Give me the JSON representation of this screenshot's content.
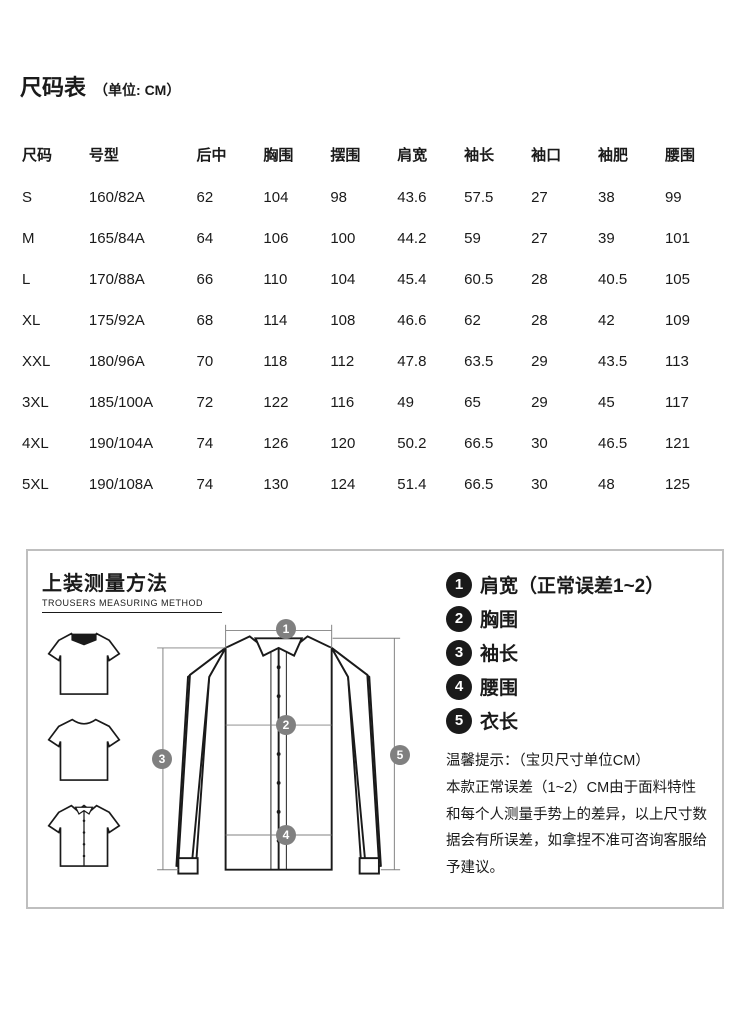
{
  "title": "尺码表",
  "title_unit": "（单位: CM）",
  "table": {
    "columns": [
      "尺码",
      "号型",
      "后中",
      "胸围",
      "摆围",
      "肩宽",
      "袖长",
      "袖口",
      "袖肥",
      "腰围"
    ],
    "rows": [
      [
        "S",
        "160/82A",
        "62",
        "104",
        "98",
        "43.6",
        "57.5",
        "27",
        "38",
        "99"
      ],
      [
        "M",
        "165/84A",
        "64",
        "106",
        "100",
        "44.2",
        "59",
        "27",
        "39",
        "101"
      ],
      [
        "L",
        "170/88A",
        "66",
        "110",
        "104",
        "45.4",
        "60.5",
        "28",
        "40.5",
        "105"
      ],
      [
        "XL",
        "175/92A",
        "68",
        "114",
        "108",
        "46.6",
        "62",
        "28",
        "42",
        "109"
      ],
      [
        "XXL",
        "180/96A",
        "70",
        "118",
        "112",
        "47.8",
        "63.5",
        "29",
        "43.5",
        "113"
      ],
      [
        "3XL",
        "185/100A",
        "72",
        "122",
        "116",
        "49",
        "65",
        "29",
        "45",
        "117"
      ],
      [
        "4XL",
        "190/104A",
        "74",
        "126",
        "120",
        "50.2",
        "66.5",
        "30",
        "46.5",
        "121"
      ],
      [
        "5XL",
        "190/108A",
        "74",
        "130",
        "124",
        "51.4",
        "66.5",
        "30",
        "48",
        "125"
      ]
    ]
  },
  "measure": {
    "title": "上装测量方法",
    "subtitle": "TROUSERS MEASURING METHOD",
    "legend": [
      {
        "num": "1",
        "label": "肩宽（正常误差1~2）"
      },
      {
        "num": "2",
        "label": "胸围"
      },
      {
        "num": "3",
        "label": "袖长"
      },
      {
        "num": "4",
        "label": "腰围"
      },
      {
        "num": "5",
        "label": "衣长"
      }
    ],
    "diagram_nums": {
      "n1": "1",
      "n2": "2",
      "n3": "3",
      "n4": "4",
      "n5": "5"
    },
    "tips_title": "温馨提示：（宝贝尺寸单位CM）",
    "tips_body": "本款正常误差（1~2）CM由于面料特性和每个人测量手势上的差异，以上尺寸数据会有所误差，如拿捏不准可咨询客服给予建议。"
  },
  "colors": {
    "text": "#1a1a1a",
    "border": "#bfbfbf",
    "circle_gray": "#808080",
    "circle_black": "#1a1a1a",
    "bg": "#ffffff"
  }
}
